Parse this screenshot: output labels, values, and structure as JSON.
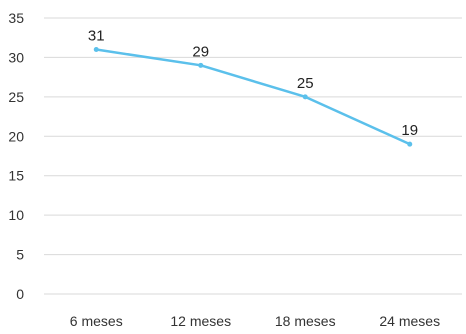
{
  "chart_data": {
    "type": "line",
    "categories": [
      "6 meses",
      "12 meses",
      "18 meses",
      "24 meses"
    ],
    "series": [
      {
        "values": [
          31,
          29,
          25,
          19
        ]
      }
    ],
    "ylim": [
      0,
      35
    ],
    "yticks": [
      0,
      5,
      10,
      15,
      20,
      25,
      30,
      35
    ],
    "grid": true,
    "line_color": "#5BC0EB",
    "grid_color": "#D9D9D9"
  }
}
